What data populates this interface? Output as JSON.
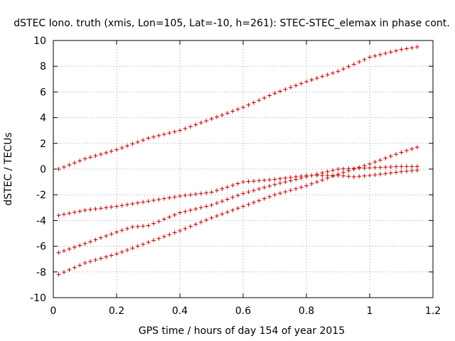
{
  "chart_data": {
    "type": "scatter",
    "title": "dSTEC Iono. truth (xmis, Lon=105, Lat=-10, h=261): STEC-STEC_elemax in phase cont.",
    "xlabel": "GPS time / hours of day 154 of year 2015",
    "ylabel": "dSTEC  / TECUs",
    "xlim": [
      0,
      1.2
    ],
    "ylim": [
      -10,
      10
    ],
    "xticks": [
      "0",
      "0.2",
      "0.4",
      "0.6",
      "0.8",
      "1",
      "1.2"
    ],
    "yticks": [
      "-10",
      "-8",
      "-6",
      "-4",
      "-2",
      "0",
      "2",
      "4",
      "6",
      "8",
      "10"
    ],
    "xtick_values": [
      0,
      0.2,
      0.4,
      0.6,
      0.8,
      1.0,
      1.2
    ],
    "ytick_values": [
      -10,
      -8,
      -6,
      -4,
      -2,
      0,
      2,
      4,
      6,
      8,
      10
    ],
    "grid": true,
    "legend": "none",
    "marker": "plus",
    "color": "#cc0000",
    "series": [
      {
        "x": [
          0.017,
          0.1,
          0.2,
          0.3,
          0.4,
          0.5,
          0.6,
          0.7,
          0.8,
          0.9,
          1.0,
          1.1,
          1.15
        ],
        "values": [
          0.0,
          0.8,
          1.5,
          2.4,
          3.0,
          3.9,
          4.8,
          5.9,
          6.8,
          7.6,
          8.7,
          9.3,
          9.5
        ]
      },
      {
        "x": [
          0.017,
          0.1,
          0.2,
          0.3,
          0.4,
          0.5,
          0.6,
          0.7,
          0.8,
          0.9,
          0.95,
          1.0,
          1.1,
          1.15
        ],
        "values": [
          -3.6,
          -3.2,
          -2.9,
          -2.5,
          -2.1,
          -1.8,
          -1.0,
          -0.8,
          -0.5,
          -0.5,
          -0.6,
          -0.5,
          -0.2,
          -0.1
        ]
      },
      {
        "x": [
          0.017,
          0.1,
          0.2,
          0.25,
          0.3,
          0.4,
          0.5,
          0.6,
          0.7,
          0.8,
          0.85,
          0.9,
          1.0,
          1.1,
          1.15
        ],
        "values": [
          -6.5,
          -5.8,
          -4.9,
          -4.5,
          -4.4,
          -3.4,
          -2.8,
          -1.9,
          -1.2,
          -0.6,
          -0.3,
          0.0,
          0.1,
          0.2,
          0.2
        ]
      },
      {
        "x": [
          0.017,
          0.1,
          0.2,
          0.3,
          0.4,
          0.5,
          0.6,
          0.7,
          0.8,
          0.9,
          1.0,
          1.1,
          1.15
        ],
        "values": [
          -8.2,
          -7.3,
          -6.6,
          -5.7,
          -4.8,
          -3.8,
          -2.9,
          -2.0,
          -1.3,
          -0.4,
          0.4,
          1.3,
          1.7
        ]
      }
    ]
  }
}
